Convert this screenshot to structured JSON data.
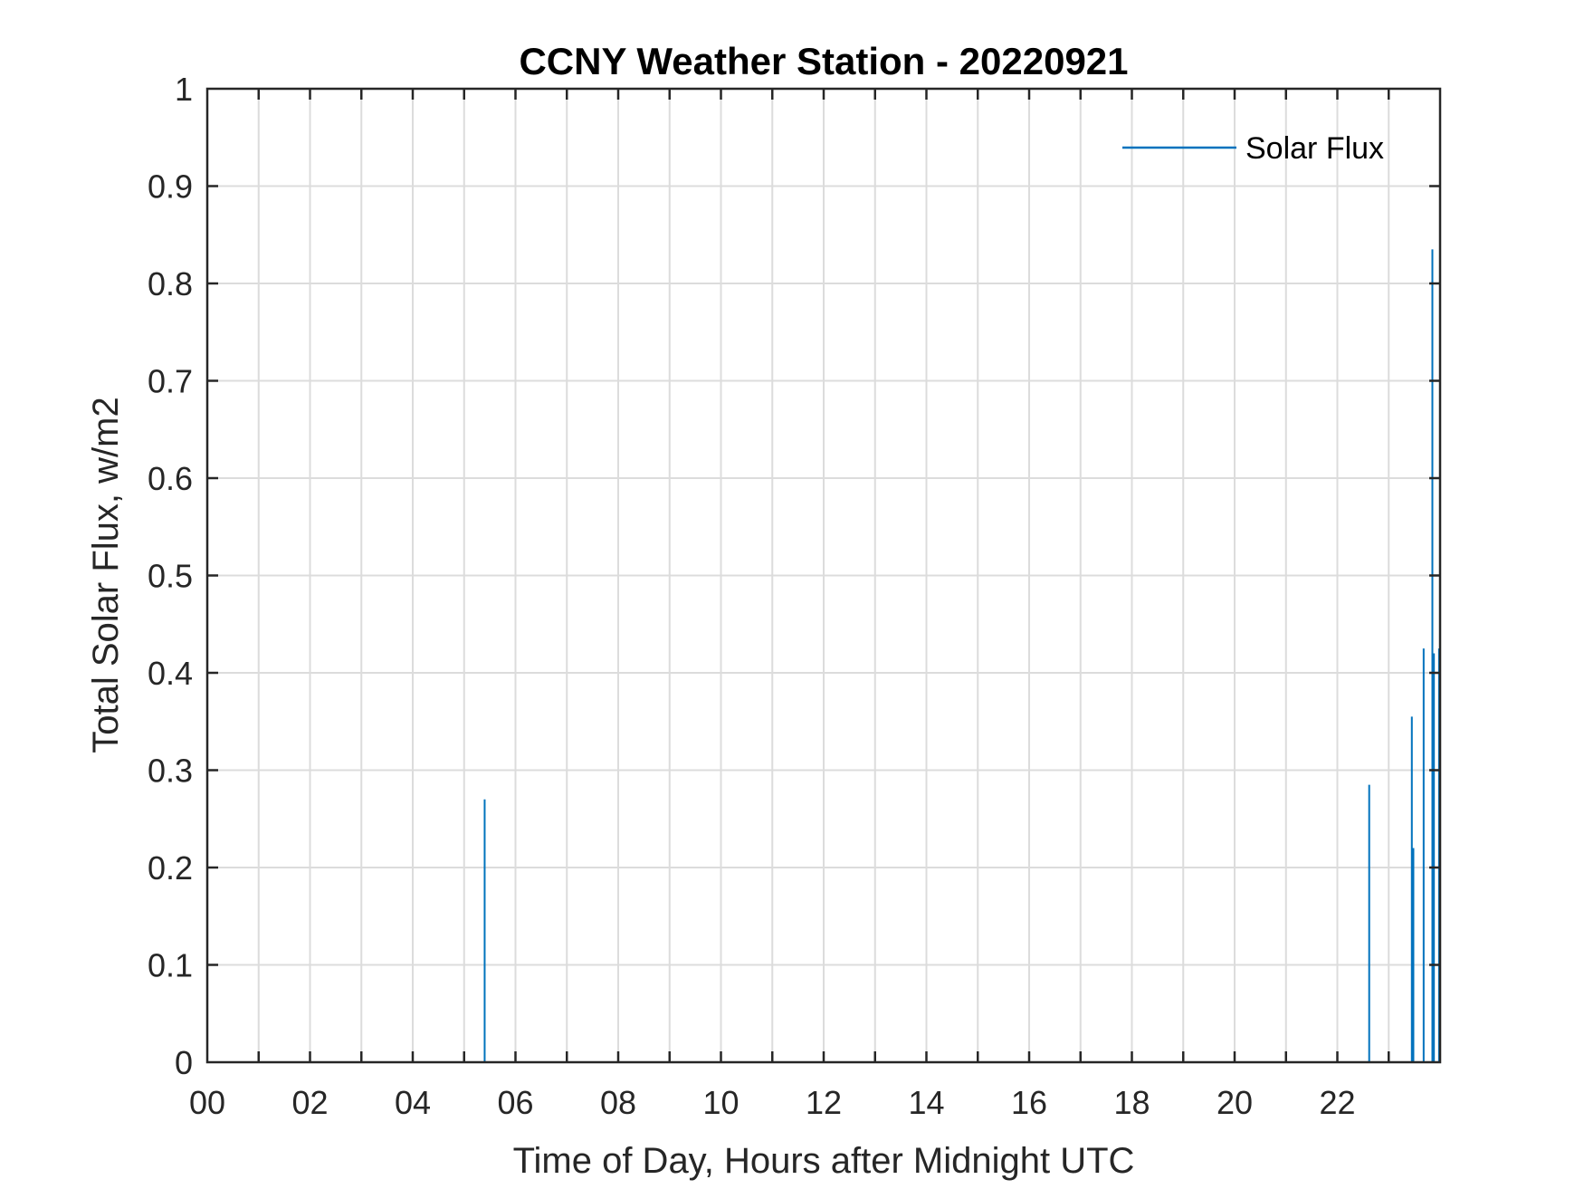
{
  "chart_data": {
    "type": "line",
    "title": "CCNY Weather Station - 20220921",
    "xlabel": "Time of Day, Hours after Midnight UTC",
    "ylabel": "Total Solar Flux, w/m2",
    "xlim": [
      0,
      24
    ],
    "ylim": [
      0,
      1
    ],
    "x_ticks": [
      0,
      2,
      4,
      6,
      8,
      10,
      12,
      14,
      16,
      18,
      20,
      22
    ],
    "x_tick_labels": [
      "00",
      "02",
      "04",
      "06",
      "08",
      "10",
      "12",
      "14",
      "16",
      "18",
      "20",
      "22"
    ],
    "x_minor_grid_step": 1,
    "y_ticks": [
      0,
      0.1,
      0.2,
      0.3,
      0.4,
      0.5,
      0.6,
      0.7,
      0.8,
      0.9,
      1
    ],
    "y_tick_labels": [
      "0",
      "0.1",
      "0.2",
      "0.3",
      "0.4",
      "0.5",
      "0.6",
      "0.7",
      "0.8",
      "0.9",
      "1"
    ],
    "grid": true,
    "legend_position": "top-right",
    "series": [
      {
        "name": "Solar Flux",
        "color": "#0072BD",
        "spikes": [
          {
            "x": 5.4,
            "y": 0.27
          },
          {
            "x": 22.62,
            "y": 0.285
          },
          {
            "x": 23.45,
            "y": 0.355
          },
          {
            "x": 23.48,
            "y": 0.22
          },
          {
            "x": 23.68,
            "y": 0.425
          },
          {
            "x": 23.85,
            "y": 0.835
          },
          {
            "x": 23.88,
            "y": 0.42
          },
          {
            "x": 23.98,
            "y": 0.425
          }
        ]
      }
    ]
  }
}
